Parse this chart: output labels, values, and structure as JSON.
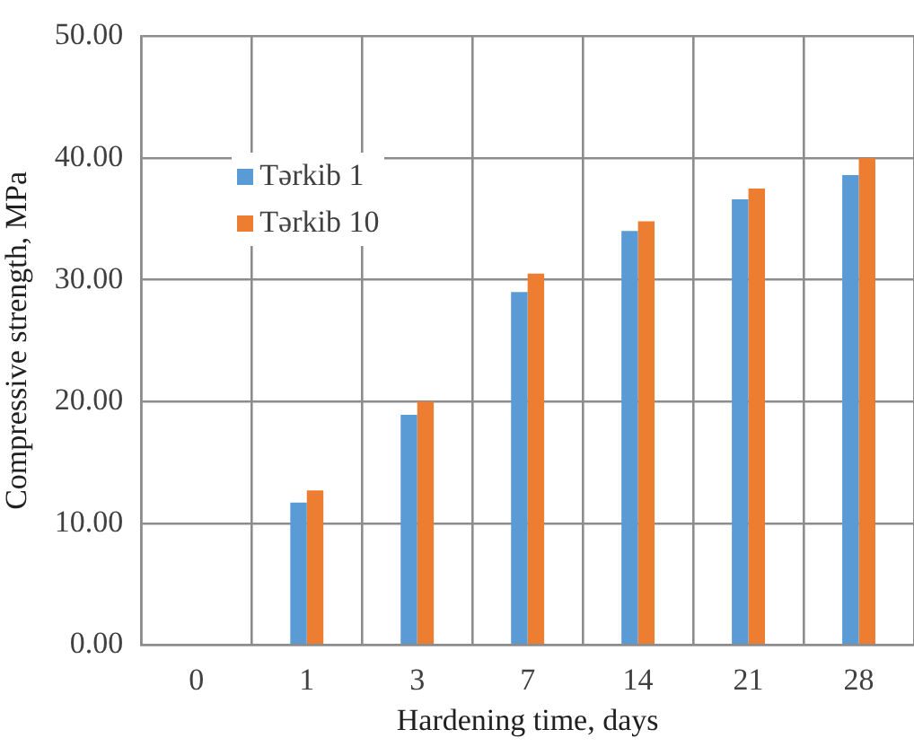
{
  "chart_data": {
    "type": "bar",
    "xlabel": "Hardening time, days",
    "ylabel": "Compressive strength, MPa",
    "categories": [
      "0",
      "1",
      "3",
      "7",
      "14",
      "21",
      "28"
    ],
    "series": [
      {
        "name": "Tərkib 1",
        "color": "#5b9bd5",
        "values": [
          0,
          11.7,
          18.9,
          29.0,
          34.0,
          36.6,
          38.6
        ]
      },
      {
        "name": "Tərkib 10",
        "color": "#ed7d31",
        "values": [
          0,
          12.7,
          20.0,
          30.5,
          34.8,
          37.5,
          40.0
        ]
      }
    ],
    "ylim": [
      0,
      50
    ],
    "yticks": [
      {
        "value": 0,
        "label": "0.00"
      },
      {
        "value": 10,
        "label": "10.00"
      },
      {
        "value": 20,
        "label": "20.00"
      },
      {
        "value": 30,
        "label": "30.00"
      },
      {
        "value": 40,
        "label": "40.00"
      },
      {
        "value": 50,
        "label": "50.00"
      }
    ],
    "grid": true,
    "legend": "top left"
  }
}
